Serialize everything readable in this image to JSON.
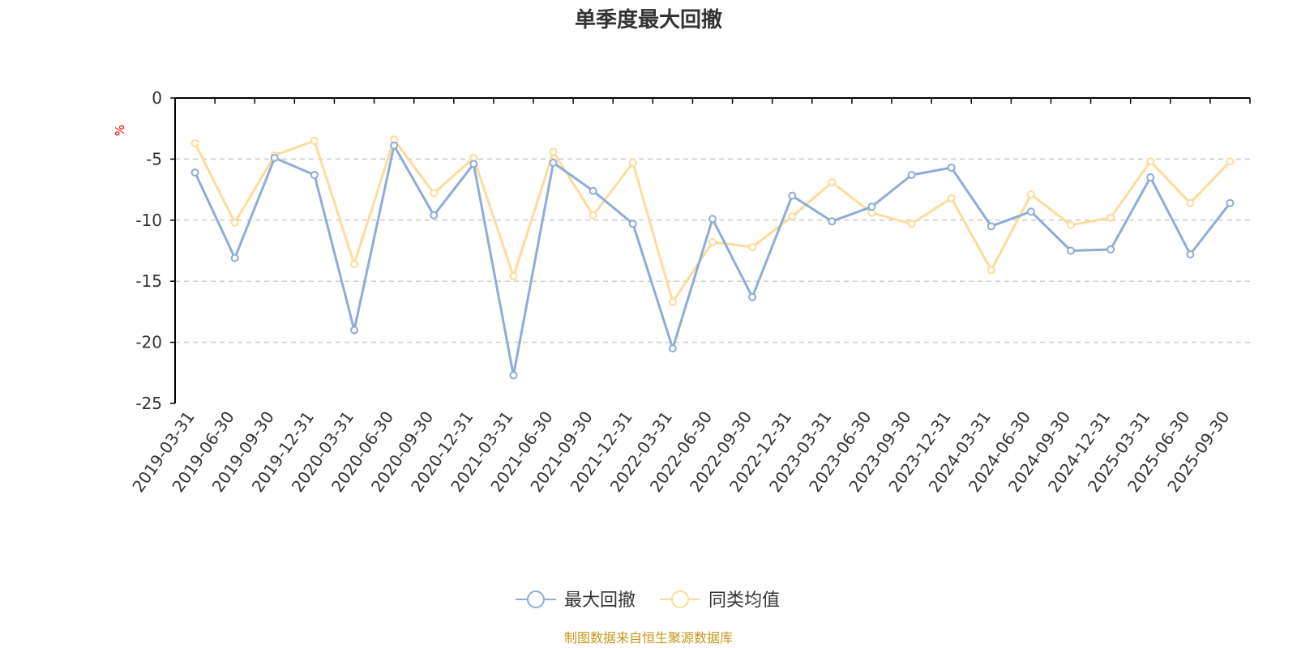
{
  "chart_data": {
    "type": "line",
    "title": "单季度最大回撤",
    "ylabel": "%",
    "ylim": [
      -25,
      0
    ],
    "yticks": [
      0,
      -5,
      -10,
      -15,
      -20,
      -25
    ],
    "grid": true,
    "legend_position": "bottom-center",
    "categories": [
      "2019-03-31",
      "2019-06-30",
      "2019-09-30",
      "2019-12-31",
      "2020-03-31",
      "2020-06-30",
      "2020-09-30",
      "2020-12-31",
      "2021-03-31",
      "2021-06-30",
      "2021-09-30",
      "2021-12-31",
      "2022-03-31",
      "2022-06-30",
      "2022-09-30",
      "2022-12-31",
      "2023-03-31",
      "2023-06-30",
      "2023-09-30",
      "2023-12-31",
      "2024-03-31",
      "2024-06-30",
      "2024-09-30",
      "2024-12-31",
      "2025-03-31",
      "2025-06-30",
      "2025-09-30"
    ],
    "series": [
      {
        "name": "最大回撤",
        "color": "#8eacd7",
        "values": [
          -6.1,
          -13.1,
          -4.9,
          -6.3,
          -19.0,
          -3.9,
          -9.6,
          -5.4,
          -22.7,
          -5.3,
          -7.6,
          -10.3,
          -20.5,
          -9.9,
          -16.3,
          -8.0,
          -10.1,
          -8.9,
          -6.3,
          -5.7,
          -10.5,
          -9.3,
          -12.5,
          -12.4,
          -6.5,
          -12.8,
          -8.6
        ]
      },
      {
        "name": "同类均值",
        "color": "#fddb9a",
        "values": [
          -3.7,
          -10.2,
          -4.7,
          -3.5,
          -13.6,
          -3.4,
          -7.8,
          -4.9,
          -14.6,
          -4.4,
          -9.6,
          -5.3,
          -16.7,
          -11.8,
          -12.2,
          -9.7,
          -6.9,
          -9.4,
          -10.3,
          -8.2,
          -14.1,
          -7.9,
          -10.4,
          -9.8,
          -5.2,
          -8.6,
          -5.2
        ]
      }
    ]
  },
  "footer": {
    "source": "制图数据来自恒生聚源数据库"
  },
  "colors": {
    "unit_label": "#ff0000",
    "source_text": "#c9961b",
    "axis": "#000000",
    "grid": "#cccccc"
  }
}
